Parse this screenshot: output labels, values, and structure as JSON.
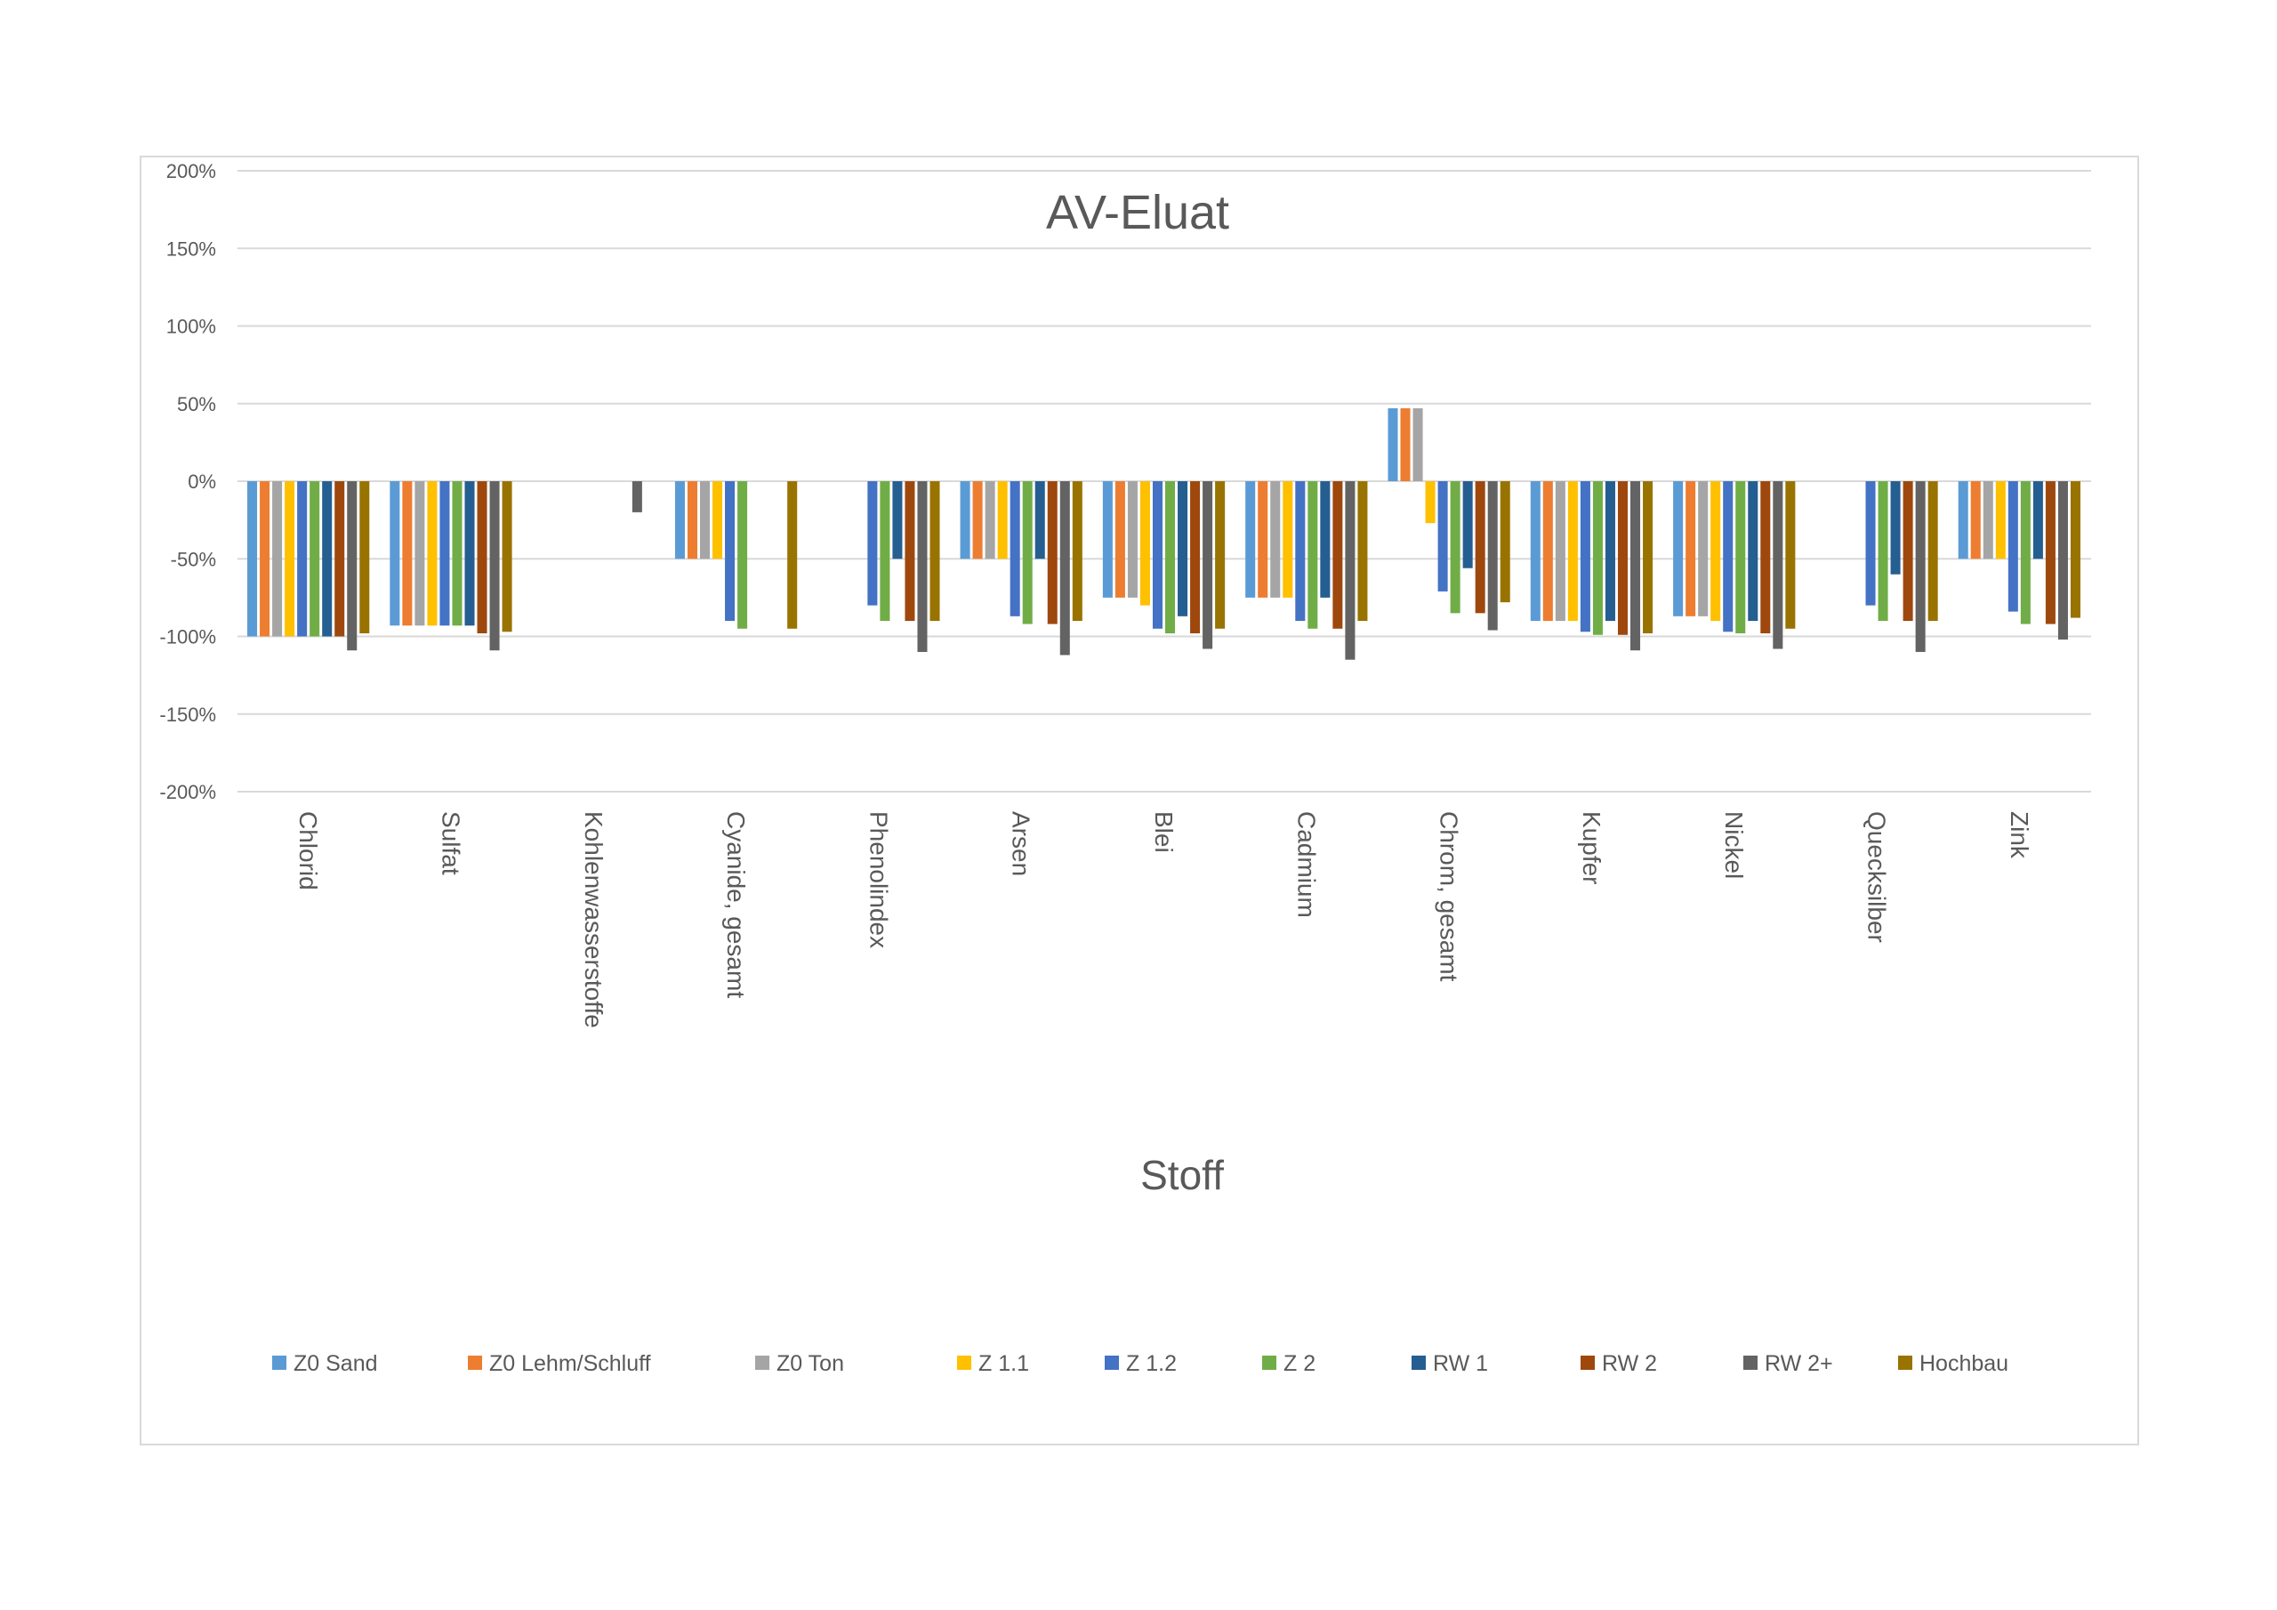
{
  "chart_data": {
    "type": "bar",
    "title": "AV-Eluat",
    "xlabel": "Stoff",
    "ylabel": "",
    "ylim": [
      -2,
      2
    ],
    "yticks": [
      2,
      1.5,
      1,
      0.5,
      0,
      -0.5,
      -1,
      -1.5,
      -2
    ],
    "ytick_labels": [
      "200%",
      "150%",
      "100%",
      "50%",
      "0%",
      "-50%",
      "-100%",
      "-150%",
      "-200%"
    ],
    "grid": true,
    "legend_position": "bottom",
    "categories": [
      "Chlorid",
      "Sulfat",
      "Kohlenwasserstoffe",
      "Cyanide, gesamt",
      "Phenolindex",
      "Arsen",
      "Blei",
      "Cadmium",
      "Chrom, gesamt",
      "Kupfer",
      "Nickel",
      "Quecksilber",
      "Zink"
    ],
    "series": [
      {
        "name": "Z0 Sand",
        "color": "#5B9BD5",
        "values": [
          -1.0,
          -0.93,
          null,
          -0.5,
          null,
          -0.5,
          -0.75,
          -0.75,
          0.47,
          -0.9,
          -0.87,
          null,
          -0.5
        ]
      },
      {
        "name": "Z0 Lehm/Schluff",
        "color": "#ED7D31",
        "values": [
          -1.0,
          -0.93,
          null,
          -0.5,
          null,
          -0.5,
          -0.75,
          -0.75,
          0.47,
          -0.9,
          -0.87,
          null,
          -0.5
        ]
      },
      {
        "name": "Z0 Ton",
        "color": "#A5A5A5",
        "values": [
          -1.0,
          -0.93,
          null,
          -0.5,
          null,
          -0.5,
          -0.75,
          -0.75,
          0.47,
          -0.9,
          -0.87,
          null,
          -0.5
        ]
      },
      {
        "name": "Z 1.1",
        "color": "#FFC000",
        "values": [
          -1.0,
          -0.93,
          null,
          -0.5,
          null,
          -0.5,
          -0.8,
          -0.75,
          -0.27,
          -0.9,
          -0.9,
          null,
          -0.5
        ]
      },
      {
        "name": "Z 1.2",
        "color": "#4472C4",
        "values": [
          -1.0,
          -0.93,
          null,
          -0.9,
          -0.8,
          -0.87,
          -0.95,
          -0.9,
          -0.71,
          -0.97,
          -0.97,
          -0.8,
          -0.84
        ]
      },
      {
        "name": "Z 2",
        "color": "#70AD47",
        "values": [
          -1.0,
          -0.93,
          null,
          -0.95,
          -0.9,
          -0.92,
          -0.98,
          -0.95,
          -0.85,
          -0.99,
          -0.98,
          -0.9,
          -0.92
        ]
      },
      {
        "name": "RW 1",
        "color": "#255E91",
        "values": [
          -1.0,
          -0.93,
          null,
          null,
          -0.5,
          -0.5,
          -0.87,
          -0.75,
          -0.56,
          -0.9,
          -0.9,
          -0.6,
          -0.5
        ]
      },
      {
        "name": "RW 2",
        "color": "#9E480E",
        "values": [
          -1.0,
          -0.98,
          null,
          null,
          -0.9,
          -0.92,
          -0.98,
          -0.95,
          -0.85,
          -0.99,
          -0.98,
          -0.9,
          -0.92
        ]
      },
      {
        "name": "RW 2+",
        "color": "#636363",
        "values": [
          -1.09,
          -1.09,
          -0.2,
          null,
          -1.1,
          -1.12,
          -1.08,
          -1.15,
          -0.96,
          -1.09,
          -1.08,
          -1.1,
          -1.02
        ]
      },
      {
        "name": "Hochbau",
        "color": "#997300",
        "values": [
          -0.98,
          -0.97,
          null,
          -0.95,
          -0.9,
          -0.9,
          -0.95,
          -0.9,
          -0.78,
          -0.98,
          -0.95,
          -0.9,
          -0.88
        ]
      }
    ]
  }
}
